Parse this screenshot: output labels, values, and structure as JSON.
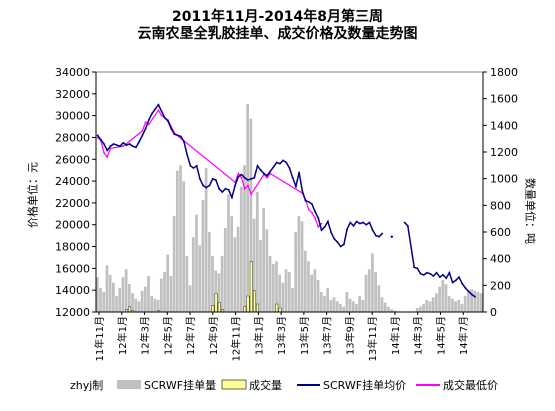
{
  "chart_data": {
    "type": "bar+line",
    "title": "2011年11月-2014年8月第三周",
    "subtitle": "云南农垦全乳胶挂单、成交价格及数量走势图",
    "ylabel_left": "价格单位：元",
    "ylabel_right": "数量单位：吨",
    "yticks_left": [
      "34000",
      "32000",
      "30000",
      "28000",
      "26000",
      "24000",
      "22000",
      "20000",
      "18000",
      "16000",
      "14000",
      "12000"
    ],
    "yticks_right": [
      "1800",
      "1600",
      "1400",
      "1200",
      "1000",
      "800",
      "600",
      "400",
      "200",
      "0"
    ],
    "ylim_left": [
      12000,
      34000
    ],
    "ylim_right": [
      0,
      1800
    ],
    "xticks": [
      "11年11月",
      "12年1月",
      "12年3月",
      "12年5月",
      "12年7月",
      "12年9月",
      "12年11月",
      "13年1月",
      "13年3月",
      "13年5月",
      "13年7月",
      "13年9月",
      "13年11月",
      "14年1月",
      "14年3月",
      "14年5月",
      "14年7月"
    ],
    "legend_author": "zhyj制",
    "legend": [
      "SCRWF挂单量",
      "成交量",
      "SCRWF挂单均价",
      "成交最低价"
    ],
    "colors": {
      "order_volume": "#c0c0c0",
      "deal_volume": "#ffff99",
      "order_price": "#000080",
      "deal_price": "#ff00ff"
    },
    "series_order_price": [
      [
        0,
        28200
      ],
      [
        1,
        27800
      ],
      [
        2,
        27400
      ],
      [
        3,
        26800
      ],
      [
        4,
        27200
      ],
      [
        5,
        27400
      ],
      [
        6,
        27300
      ],
      [
        7,
        27200
      ],
      [
        8,
        27500
      ],
      [
        9,
        27300
      ],
      [
        10,
        27400
      ],
      [
        11,
        27200
      ],
      [
        12,
        27100
      ],
      [
        13,
        27600
      ],
      [
        14,
        28200
      ],
      [
        15,
        28800
      ],
      [
        16,
        29600
      ],
      [
        17,
        30200
      ],
      [
        18,
        30600
      ],
      [
        19,
        31000
      ],
      [
        20,
        30400
      ],
      [
        21,
        29800
      ],
      [
        22,
        29500
      ],
      [
        23,
        28800
      ],
      [
        24,
        28300
      ],
      [
        25,
        28200
      ],
      [
        26,
        28100
      ],
      [
        27,
        27600
      ],
      [
        28,
        26400
      ],
      [
        29,
        25400
      ],
      [
        30,
        25200
      ],
      [
        31,
        25400
      ],
      [
        32,
        24200
      ],
      [
        33,
        23600
      ],
      [
        34,
        23400
      ],
      [
        35,
        23600
      ],
      [
        36,
        24200
      ],
      [
        37,
        24100
      ],
      [
        38,
        23300
      ],
      [
        39,
        23000
      ],
      [
        40,
        23300
      ],
      [
        41,
        23200
      ],
      [
        42,
        22500
      ],
      [
        43,
        23600
      ],
      [
        44,
        24400
      ],
      [
        45,
        24600
      ],
      [
        46,
        24300
      ],
      [
        47,
        24100
      ],
      [
        48,
        24200
      ],
      [
        49,
        24300
      ],
      [
        50,
        25400
      ],
      [
        51,
        25000
      ],
      [
        52,
        24700
      ],
      [
        53,
        24500
      ],
      [
        54,
        24900
      ],
      [
        55,
        25300
      ],
      [
        56,
        25700
      ],
      [
        57,
        25600
      ],
      [
        58,
        25900
      ],
      [
        59,
        25700
      ],
      [
        60,
        25200
      ],
      [
        61,
        24300
      ],
      [
        62,
        23500
      ],
      [
        63,
        24800
      ],
      [
        64,
        23100
      ],
      [
        65,
        22200
      ],
      [
        66,
        22100
      ],
      [
        67,
        21900
      ],
      [
        68,
        21200
      ],
      [
        69,
        20600
      ],
      [
        70,
        19500
      ],
      [
        71,
        19800
      ],
      [
        72,
        20300
      ],
      [
        73,
        19300
      ],
      [
        74,
        18700
      ],
      [
        75,
        18400
      ],
      [
        76,
        18000
      ],
      [
        77,
        18200
      ],
      [
        78,
        19600
      ],
      [
        79,
        20200
      ],
      [
        80,
        19900
      ],
      [
        81,
        20300
      ],
      [
        82,
        20100
      ],
      [
        83,
        20200
      ],
      [
        84,
        20000
      ],
      [
        85,
        20200
      ],
      [
        86,
        19500
      ],
      [
        87,
        19000
      ],
      [
        88,
        18900
      ],
      [
        89,
        19200
      ]
    ],
    "series_order_price_tail": [
      [
        92,
        18900
      ],
      [
        96,
        20200
      ],
      [
        97,
        19900
      ],
      [
        99,
        16100
      ],
      [
        100,
        16000
      ],
      [
        101,
        15500
      ],
      [
        102,
        15400
      ],
      [
        103,
        15600
      ],
      [
        104,
        15500
      ],
      [
        105,
        15300
      ],
      [
        106,
        15600
      ],
      [
        107,
        15200
      ],
      [
        108,
        15400
      ],
      [
        109,
        15100
      ],
      [
        110,
        15600
      ],
      [
        111,
        14700
      ],
      [
        112,
        14900
      ],
      [
        113,
        15200
      ],
      [
        114,
        14600
      ],
      [
        115,
        14200
      ],
      [
        116,
        13900
      ],
      [
        117,
        13600
      ],
      [
        118,
        13400
      ]
    ],
    "series_deal_price": [
      [
        0,
        28000
      ],
      [
        1,
        27700
      ],
      [
        2,
        26600
      ],
      [
        3,
        26200
      ],
      [
        4,
        27000
      ],
      [
        8,
        27200
      ],
      [
        14,
        28600
      ],
      [
        15,
        29400
      ],
      [
        16,
        29200
      ],
      [
        19,
        30500
      ],
      [
        20,
        30000
      ],
      [
        22,
        29600
      ],
      [
        24,
        28400
      ],
      [
        43,
        23900
      ],
      [
        44,
        24700
      ],
      [
        45,
        24300
      ],
      [
        46,
        23300
      ],
      [
        47,
        23600
      ],
      [
        48,
        22800
      ],
      [
        52,
        24600
      ],
      [
        53,
        24300
      ],
      [
        54,
        24700
      ],
      [
        64,
        22900
      ],
      [
        65,
        22300
      ],
      [
        66,
        21400
      ],
      [
        67,
        21100
      ],
      [
        68,
        20600
      ],
      [
        69,
        19800
      ],
      [
        70,
        20100
      ]
    ],
    "series_order_volume": [
      260,
      180,
      150,
      350,
      280,
      220,
      120,
      180,
      260,
      320,
      210,
      140,
      100,
      80,
      160,
      190,
      270,
      120,
      100,
      90,
      250,
      300,
      430,
      270,
      720,
      1060,
      1100,
      980,
      420,
      200,
      560,
      730,
      500,
      840,
      1080,
      600,
      420,
      310,
      290,
      420,
      630,
      880,
      720,
      560,
      640,
      940,
      1100,
      1560,
      1450,
      700,
      900,
      540,
      780,
      620,
      420,
      360,
      380,
      280,
      220,
      320,
      300,
      180,
      600,
      720,
      680,
      460,
      380,
      280,
      320,
      240,
      150,
      120,
      180,
      90,
      110,
      80,
      60,
      40,
      150,
      100,
      80,
      60,
      120,
      90,
      280,
      320,
      440,
      300,
      200,
      110,
      70,
      40,
      20,
      10,
      5,
      0,
      0,
      0,
      0,
      0,
      30,
      40,
      60,
      90,
      80,
      110,
      140,
      190,
      240,
      210,
      120,
      100,
      80,
      90,
      60,
      120,
      160,
      170,
      160,
      150,
      140
    ],
    "series_deal_volume": [
      0,
      0,
      0,
      0,
      0,
      0,
      0,
      0,
      0,
      20,
      40,
      10,
      0,
      0,
      0,
      0,
      0,
      0,
      0,
      10,
      0,
      0,
      0,
      0,
      0,
      0,
      0,
      0,
      0,
      0,
      0,
      0,
      0,
      0,
      0,
      0,
      50,
      140,
      70,
      20,
      0,
      0,
      0,
      0,
      0,
      0,
      40,
      120,
      380,
      160,
      60,
      0,
      0,
      0,
      0,
      0,
      60,
      30,
      0,
      0,
      0,
      0,
      0,
      0,
      0,
      0,
      0,
      0,
      0,
      0,
      0,
      0,
      0,
      0,
      0,
      0,
      0,
      0,
      0,
      0,
      0,
      0,
      0,
      0,
      0,
      0,
      0,
      0,
      0,
      0,
      0,
      0,
      0,
      0,
      0,
      0,
      0,
      0,
      0,
      0,
      0,
      0,
      0,
      0,
      0,
      0,
      0,
      0,
      0,
      0,
      0,
      0,
      0,
      0,
      0,
      0,
      0,
      0,
      0
    ]
  }
}
